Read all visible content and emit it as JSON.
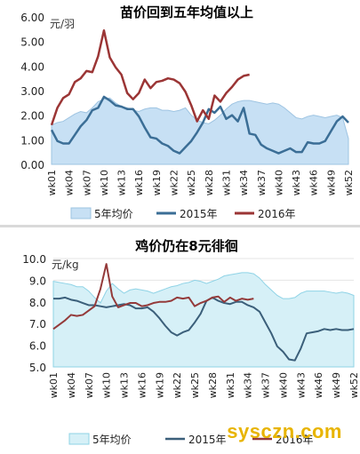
{
  "colors": {
    "area_fill": "#c7e0f4",
    "area_stroke": "#9ec4e2",
    "area_fill_bottom": "#d6f0f7",
    "area_stroke_bottom": "#8fd3e6",
    "line_2015": "#3b6e96",
    "line_2016": "#9b3535",
    "line_2015_bottom": "#3b5f7a",
    "line_2016_bottom": "#943a3a",
    "grid": "#e5e5e5",
    "watermark": "#e8b400"
  },
  "watermark": "sysczn.com",
  "chart_data": [
    {
      "type": "area+line",
      "title": "苗价回到五年均值以上",
      "unit_label": "元/羽",
      "ylim": [
        0,
        6
      ],
      "yticks": [
        "0.00",
        "1.00",
        "2.00",
        "3.00",
        "4.00",
        "5.00",
        "6.00"
      ],
      "ytick_values": [
        0,
        1,
        2,
        3,
        4,
        5,
        6
      ],
      "x_tick_labels": [
        "wk01",
        "wk04",
        "wk07",
        "wk10",
        "wk13",
        "wk16",
        "wk19",
        "wk22",
        "wk25",
        "wk28",
        "wk31",
        "wk34",
        "wk37",
        "wk40",
        "wk43",
        "wk46",
        "wk49",
        "wk52"
      ],
      "x_tick_weeks": [
        1,
        4,
        7,
        10,
        13,
        16,
        19,
        22,
        25,
        28,
        31,
        34,
        37,
        40,
        43,
        46,
        49,
        52
      ],
      "grid": false,
      "legend_position": "bottom",
      "series": [
        {
          "name": "5年均价",
          "style": "area",
          "values": [
            1.6,
            1.7,
            1.75,
            1.9,
            2.05,
            2.15,
            2.1,
            2.3,
            2.55,
            2.65,
            2.7,
            2.5,
            2.35,
            2.3,
            2.2,
            2.15,
            2.25,
            2.3,
            2.3,
            2.2,
            2.2,
            2.15,
            2.2,
            2.3,
            2.0,
            1.8,
            1.7,
            1.65,
            1.8,
            2.0,
            2.25,
            2.45,
            2.55,
            2.6,
            2.6,
            2.55,
            2.5,
            2.45,
            2.5,
            2.45,
            2.3,
            2.1,
            1.9,
            1.85,
            1.95,
            2.0,
            1.95,
            1.9,
            1.95,
            2.0,
            1.9,
            1.05
          ]
        },
        {
          "name": "2015年",
          "style": "line",
          "values": [
            1.4,
            0.95,
            0.85,
            0.85,
            1.2,
            1.55,
            1.8,
            2.2,
            2.3,
            2.75,
            2.6,
            2.4,
            2.35,
            2.25,
            2.25,
            1.95,
            1.5,
            1.1,
            1.05,
            0.85,
            0.75,
            0.55,
            0.45,
            0.7,
            0.95,
            1.3,
            1.7,
            2.25,
            2.1,
            2.35,
            1.85,
            2.0,
            1.75,
            2.3,
            1.25,
            1.2,
            0.8,
            0.65,
            0.55,
            0.45,
            0.55,
            0.65,
            0.5,
            0.5,
            0.9,
            0.85,
            0.85,
            0.95,
            1.35,
            1.75,
            1.95,
            1.7
          ]
        },
        {
          "name": "2016年",
          "style": "line",
          "values": [
            1.6,
            2.3,
            2.7,
            2.85,
            3.35,
            3.5,
            3.8,
            3.75,
            4.4,
            5.45,
            4.35,
            3.95,
            3.65,
            2.9,
            2.65,
            2.9,
            3.45,
            3.1,
            3.35,
            3.4,
            3.5,
            3.45,
            3.3,
            2.95,
            2.4,
            1.75,
            2.2,
            1.85,
            2.8,
            2.55,
            2.9,
            3.15,
            3.45,
            3.6,
            3.65
          ]
        }
      ],
      "legend": [
        "5年均价",
        "2015年",
        "2016年"
      ]
    },
    {
      "type": "area+line",
      "title": "鸡价仍在8元徘徊",
      "unit_label": "元/kg",
      "ylim": [
        5,
        10
      ],
      "yticks": [
        "5.0",
        "6.0",
        "7.0",
        "8.0",
        "9.0",
        "10.0"
      ],
      "ytick_values": [
        5,
        6,
        7,
        8,
        9,
        10
      ],
      "x_tick_labels": [
        "wk01",
        "wk04",
        "wk07",
        "wk10",
        "wk13",
        "wk16",
        "wk19",
        "wk22",
        "wk25",
        "wk28",
        "wk31",
        "wk34",
        "wk37",
        "wk40",
        "wk43",
        "wk46",
        "wk49",
        "wk52"
      ],
      "x_tick_weeks": [
        1,
        4,
        7,
        10,
        13,
        16,
        19,
        22,
        25,
        28,
        31,
        34,
        37,
        40,
        43,
        46,
        49,
        52
      ],
      "grid": true,
      "legend_position": "bottom",
      "series": [
        {
          "name": "5年均价",
          "style": "area",
          "values": [
            8.95,
            8.9,
            8.85,
            8.8,
            8.7,
            8.7,
            8.5,
            8.2,
            7.95,
            8.5,
            8.85,
            8.6,
            8.4,
            8.55,
            8.6,
            8.55,
            8.5,
            8.4,
            8.5,
            8.6,
            8.7,
            8.75,
            8.85,
            8.9,
            9.0,
            8.95,
            8.85,
            8.95,
            9.05,
            9.2,
            9.25,
            9.3,
            9.35,
            9.35,
            9.3,
            9.1,
            8.8,
            8.55,
            8.3,
            8.15,
            8.15,
            8.2,
            8.4,
            8.5,
            8.5,
            8.5,
            8.5,
            8.45,
            8.4,
            8.45,
            8.4,
            8.3
          ]
        },
        {
          "name": "2015年",
          "style": "line",
          "values": [
            8.15,
            8.15,
            8.2,
            8.1,
            8.05,
            7.95,
            7.85,
            7.85,
            7.8,
            7.75,
            7.8,
            7.85,
            7.9,
            7.85,
            7.7,
            7.7,
            7.75,
            7.55,
            7.25,
            6.9,
            6.6,
            6.45,
            6.6,
            6.7,
            7.05,
            7.45,
            8.05,
            8.2,
            8.05,
            7.95,
            7.9,
            8.0,
            8.0,
            7.85,
            7.75,
            7.55,
            7.05,
            6.55,
            5.95,
            5.7,
            5.35,
            5.3,
            5.85,
            6.55,
            6.6,
            6.65,
            6.75,
            6.7,
            6.75,
            6.7,
            6.7,
            6.75
          ]
        },
        {
          "name": "2016年",
          "style": "line",
          "values": [
            6.75,
            6.95,
            7.15,
            7.4,
            7.35,
            7.4,
            7.6,
            7.8,
            8.6,
            9.75,
            8.25,
            7.75,
            7.85,
            7.95,
            7.95,
            7.8,
            7.85,
            7.95,
            8.0,
            8.0,
            8.05,
            8.2,
            8.15,
            8.2,
            7.8,
            7.95,
            8.05,
            8.2,
            8.25,
            8.0,
            8.2,
            8.05,
            8.15,
            8.1,
            8.15
          ]
        }
      ],
      "legend": [
        "5年均价",
        "2015年",
        "2016年"
      ]
    }
  ]
}
